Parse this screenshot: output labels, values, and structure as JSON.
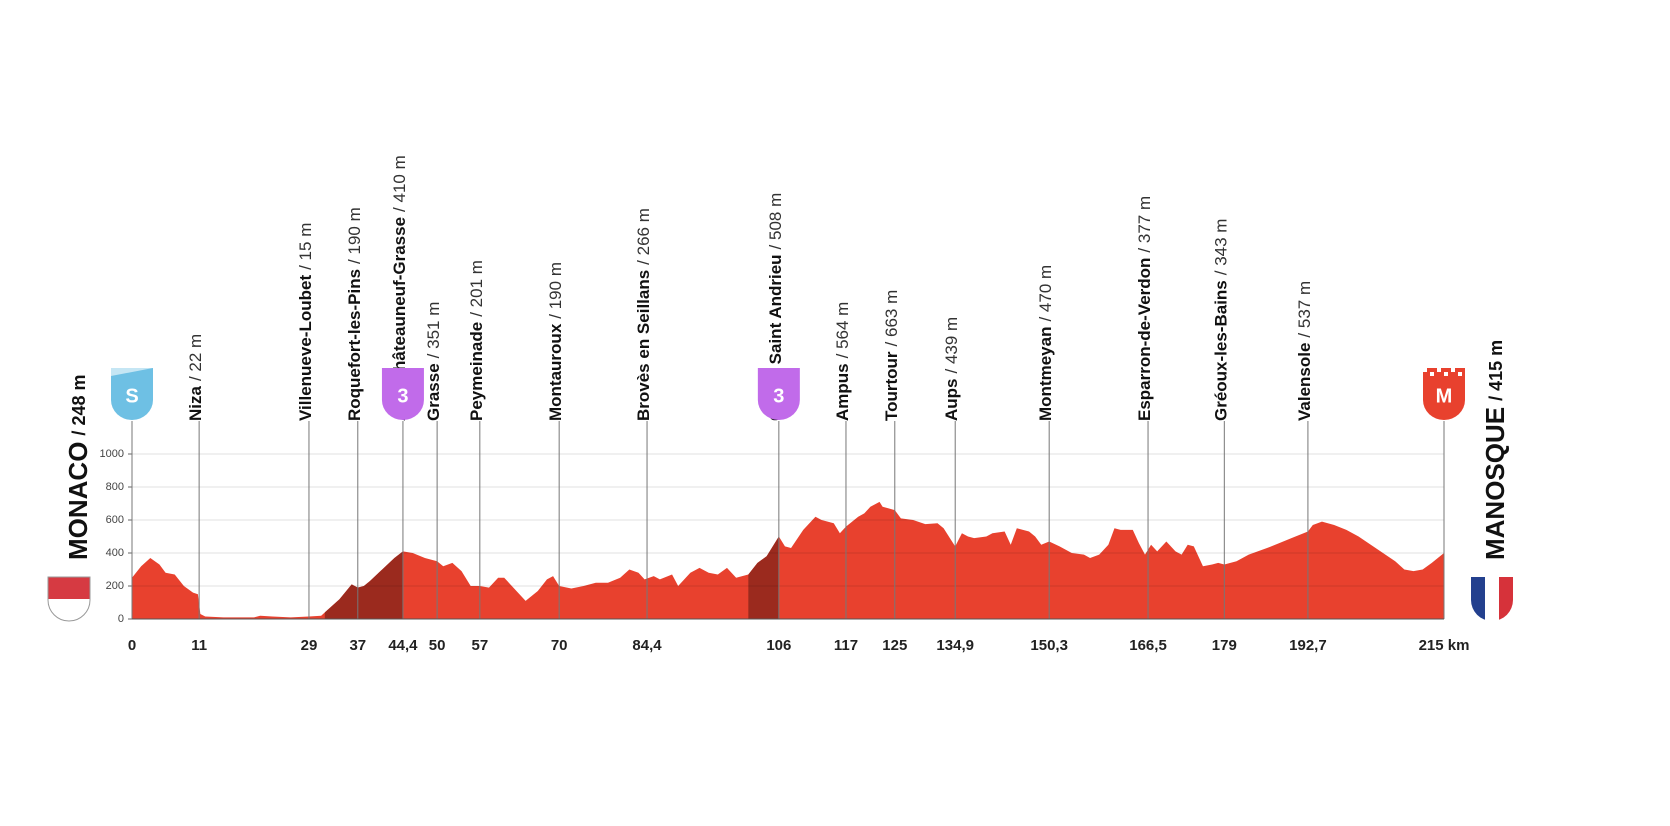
{
  "chart_data": {
    "type": "area",
    "color": "#e8412e",
    "climb_color": "#9b2a1e",
    "x": [
      0,
      1.5,
      3,
      4.5,
      5.5,
      7,
      8.5,
      10,
      10.8,
      11.2,
      12,
      15,
      20,
      21,
      23,
      26,
      29,
      31,
      31.6,
      34,
      36,
      37,
      38,
      39,
      41,
      43,
      44.4,
      46,
      48,
      50,
      51,
      52.5,
      54,
      55.5,
      57,
      58.5,
      60,
      61,
      63,
      64.5,
      66.5,
      68,
      69,
      70,
      72,
      74,
      76,
      78,
      80,
      81.5,
      83,
      84,
      85.5,
      86.5,
      88.5,
      89.5,
      91.5,
      93,
      94.5,
      96,
      97.5,
      99,
      101,
      102.5,
      104,
      106,
      107,
      108,
      110,
      112,
      113,
      115,
      116,
      117,
      119,
      120,
      121,
      122.5,
      123,
      125,
      126,
      128,
      130,
      132,
      133,
      134.2,
      134.9,
      136,
      137,
      138,
      140,
      141,
      143,
      144,
      145,
      147,
      148,
      149,
      150.3,
      152,
      154,
      156,
      157,
      158.5,
      160,
      161,
      162,
      164,
      165,
      166,
      167,
      168,
      169.5,
      171,
      172,
      173,
      174,
      175.5,
      177,
      178,
      179,
      181,
      183,
      186,
      188,
      190,
      192.7,
      193.5,
      195,
      197,
      199,
      201,
      203,
      205,
      207,
      208.5,
      210,
      211.5,
      213,
      215
    ],
    "values": [
      250,
      320,
      370,
      330,
      280,
      270,
      200,
      160,
      150,
      30,
      15,
      10,
      10,
      20,
      15,
      10,
      15,
      20,
      40,
      120,
      210,
      190,
      200,
      230,
      300,
      370,
      410,
      400,
      370,
      350,
      320,
      340,
      290,
      200,
      200,
      190,
      250,
      250,
      170,
      110,
      170,
      240,
      260,
      200,
      185,
      200,
      220,
      220,
      250,
      300,
      280,
      240,
      260,
      240,
      270,
      200,
      280,
      310,
      280,
      270,
      310,
      250,
      270,
      340,
      380,
      500,
      440,
      430,
      540,
      620,
      600,
      580,
      520,
      560,
      620,
      640,
      680,
      710,
      680,
      660,
      610,
      600,
      575,
      580,
      550,
      480,
      440,
      520,
      500,
      490,
      500,
      520,
      530,
      450,
      550,
      530,
      500,
      450,
      470,
      440,
      400,
      390,
      370,
      390,
      450,
      550,
      540,
      540,
      460,
      390,
      450,
      410,
      470,
      410,
      390,
      450,
      440,
      320,
      330,
      340,
      330,
      350,
      390,
      430,
      460,
      490,
      530,
      570,
      590,
      570,
      540,
      500,
      450,
      400,
      350,
      300,
      290,
      300,
      340,
      400
    ],
    "ylim": [
      0,
      1000
    ],
    "yticks": [
      0,
      200,
      400,
      600,
      800,
      1000
    ],
    "xlim": [
      0,
      215
    ],
    "xticks": [
      0,
      11,
      29,
      37,
      {
        "value": 44.4,
        "label": "44,4"
      },
      50,
      57,
      70,
      {
        "value": 84.4,
        "label": "84,4"
      },
      106,
      117,
      125,
      {
        "value": 134.9,
        "label": "134,9"
      },
      {
        "value": 150.3,
        "label": "150,3"
      },
      {
        "value": 166.5,
        "label": "166,5"
      },
      179,
      {
        "value": 192.7,
        "label": "192,7"
      },
      {
        "value": 215,
        "label": "215 km"
      }
    ],
    "start": {
      "name": "MONACO",
      "elevation": "/ 248 m",
      "marker": "S"
    },
    "finish": {
      "name": "MANOSQUE",
      "elevation": "/ 415 m",
      "marker": "M"
    },
    "waypoints": [
      {
        "name": "Niza",
        "elevation": "/ 22 m"
      },
      {
        "name": "Villenueve-Loubet",
        "elevation": "/ 15 m"
      },
      {
        "name": "Roquefort-les-Pins",
        "elevation": "/ 190 m"
      },
      {
        "name": "Alto Châteauneuf-Grasse",
        "elevation": "/ 410 m"
      },
      {
        "name": "Grasse",
        "elevation": "/ 351 m"
      },
      {
        "name": "Peymeinade",
        "elevation": "/ 201 m"
      },
      {
        "name": "Montauroux",
        "elevation": "/ 190 m"
      },
      {
        "name": "Brovès en Seillans",
        "elevation": "/ 266 m"
      },
      {
        "name": "Col de Saint Andrieu",
        "elevation": "/ 508 m"
      },
      {
        "name": "Ampus",
        "elevation": "/ 564 m"
      },
      {
        "name": "Tourtour",
        "elevation": "/ 663 m"
      },
      {
        "name": "Aups",
        "elevation": "/ 439 m"
      },
      {
        "name": "Montmeyan",
        "elevation": "/ 470 m"
      },
      {
        "name": "Esparron-de-Verdon",
        "elevation": "/ 377 m"
      },
      {
        "name": "Gréoux-les-Bains",
        "elevation": "/ 343 m"
      },
      {
        "name": "Valensole",
        "elevation": "/ 537 m"
      }
    ],
    "climbs": [
      {
        "start": 31.6,
        "end": 44.4,
        "category": "3"
      },
      {
        "start": 101,
        "end": 106,
        "category": "3"
      }
    ]
  }
}
